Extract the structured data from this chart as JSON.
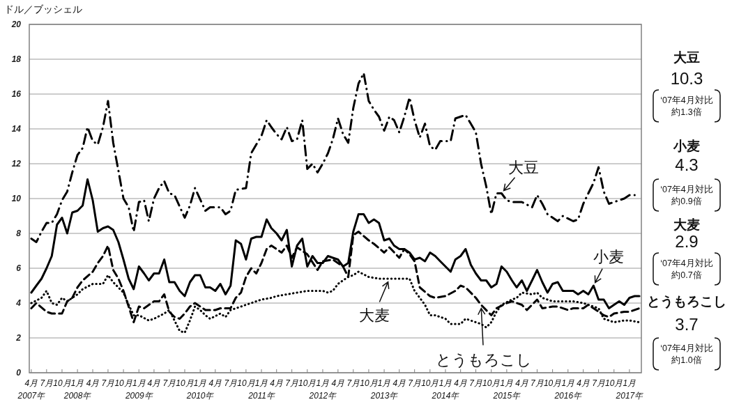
{
  "chart_data": {
    "type": "line",
    "ylabel": "ドル／ブッシェル",
    "grid": "y",
    "xlim": [
      "2007-03-20",
      "2017-03-13"
    ],
    "ylim": [
      0,
      20
    ],
    "yticks": [
      0,
      2,
      4,
      6,
      8,
      10,
      12,
      14,
      16,
      18,
      20
    ],
    "xticks": [
      {
        "value": "2007-04",
        "label": "4月\n2007年"
      },
      {
        "value": "2007-07",
        "label": "7月"
      },
      {
        "value": "2007-10",
        "label": "10月"
      },
      {
        "value": "2008-01",
        "label": "1月\n2008年"
      },
      {
        "value": "2008-04",
        "label": "4月"
      },
      {
        "value": "2008-07",
        "label": "7月"
      },
      {
        "value": "2008-10",
        "label": "10月"
      },
      {
        "value": "2009-01",
        "label": "1月\n2009年"
      },
      {
        "value": "2009-04",
        "label": "4月"
      },
      {
        "value": "2009-07",
        "label": "7月"
      },
      {
        "value": "2009-10",
        "label": "10月"
      },
      {
        "value": "2010-01",
        "label": "1月\n2010年"
      },
      {
        "value": "2010-04",
        "label": "4月"
      },
      {
        "value": "2010-07",
        "label": "7月"
      },
      {
        "value": "2010-10",
        "label": "10月"
      },
      {
        "value": "2011-01",
        "label": "1月\n2011年"
      },
      {
        "value": "2011-04",
        "label": "4月"
      },
      {
        "value": "2011-07",
        "label": "7月"
      },
      {
        "value": "2011-10",
        "label": "10月"
      },
      {
        "value": "2012-01",
        "label": "1月\n2012年"
      },
      {
        "value": "2012-04",
        "label": "4月"
      },
      {
        "value": "2012-07",
        "label": "7月"
      },
      {
        "value": "2012-10",
        "label": "10月"
      },
      {
        "value": "2013-01",
        "label": "1月\n2013年"
      },
      {
        "value": "2013-04",
        "label": "4月"
      },
      {
        "value": "2013-07",
        "label": "7月"
      },
      {
        "value": "2013-10",
        "label": "10月"
      },
      {
        "value": "2014-01",
        "label": "1月\n2014年"
      },
      {
        "value": "2014-04",
        "label": "4月"
      },
      {
        "value": "2014-07",
        "label": "7月"
      },
      {
        "value": "2014-10",
        "label": "10月"
      },
      {
        "value": "2015-01",
        "label": "1月\n2015年"
      },
      {
        "value": "2015-04",
        "label": "4月"
      },
      {
        "value": "2015-07",
        "label": "7月"
      },
      {
        "value": "2015-10",
        "label": "10月"
      },
      {
        "value": "2016-01",
        "label": "1月\n2016年"
      },
      {
        "value": "2016-04",
        "label": "4月"
      },
      {
        "value": "2016-07",
        "label": "7月"
      },
      {
        "value": "2016-10",
        "label": "10月"
      },
      {
        "value": "2017-01",
        "label": "1月\n2017年"
      }
    ],
    "x": [
      "2007-04",
      "2007-05",
      "2007-06",
      "2007-07",
      "2007-08",
      "2007-09",
      "2007-10",
      "2007-11",
      "2007-12",
      "2008-01",
      "2008-02",
      "2008-03",
      "2008-04",
      "2008-05",
      "2008-06",
      "2008-07",
      "2008-08",
      "2008-09",
      "2008-10",
      "2008-11",
      "2008-12",
      "2009-01",
      "2009-02",
      "2009-03",
      "2009-04",
      "2009-05",
      "2009-06",
      "2009-07",
      "2009-08",
      "2009-09",
      "2009-10",
      "2009-11",
      "2009-12",
      "2010-01",
      "2010-02",
      "2010-03",
      "2010-04",
      "2010-05",
      "2010-06",
      "2010-07",
      "2010-08",
      "2010-09",
      "2010-10",
      "2010-11",
      "2010-12",
      "2011-01",
      "2011-02",
      "2011-03",
      "2011-04",
      "2011-05",
      "2011-06",
      "2011-07",
      "2011-08",
      "2011-09",
      "2011-10",
      "2011-11",
      "2011-12",
      "2012-01",
      "2012-02",
      "2012-03",
      "2012-04",
      "2012-05",
      "2012-06",
      "2012-07",
      "2012-08",
      "2012-09",
      "2012-10",
      "2012-11",
      "2012-12",
      "2013-01",
      "2013-02",
      "2013-03",
      "2013-04",
      "2013-05",
      "2013-06",
      "2013-07",
      "2013-08",
      "2013-09",
      "2013-10",
      "2013-11",
      "2013-12",
      "2014-01",
      "2014-02",
      "2014-03",
      "2014-04",
      "2014-05",
      "2014-06",
      "2014-07",
      "2014-08",
      "2014-09",
      "2014-10",
      "2014-11",
      "2014-12",
      "2015-01",
      "2015-02",
      "2015-03",
      "2015-04",
      "2015-05",
      "2015-06",
      "2015-07",
      "2015-08",
      "2015-09",
      "2015-10",
      "2015-11",
      "2015-12",
      "2016-01",
      "2016-02",
      "2016-03",
      "2016-04",
      "2016-05",
      "2016-06",
      "2016-07",
      "2016-08",
      "2016-09",
      "2016-10",
      "2016-11",
      "2016-12",
      "2017-01",
      "2017-02",
      "2017-03"
    ],
    "series": [
      {
        "color": "#000000",
        "line_style": "dashdot",
        "x": [
          "2007-04",
          "2007-05",
          "2007-06",
          "2007-07",
          "2007-08",
          "2007-09",
          "2007-10",
          "2007-11",
          "2007-12",
          "2008-01",
          "2008-02",
          "2008-03",
          "2008-04",
          "2008-05",
          "2008-06",
          "2008-07",
          "2008-08",
          "2008-09",
          "2008-10",
          "2008-11",
          "2008-12",
          "2009-01",
          "2009-02",
          "2009-03",
          "2009-04",
          "2009-05",
          "2009-06",
          "2009-07",
          "2009-08",
          "2009-10",
          "2009-11",
          "2009-12",
          "2010-02",
          "2010-03",
          "2010-05",
          "2010-06",
          "2010-07",
          "2010-08",
          "2010-10",
          "2010-11",
          "2010-12",
          "2011-01",
          "2011-02",
          "2011-03",
          "2011-04",
          "2011-05",
          "2011-06",
          "2011-07",
          "2011-08",
          "2011-09",
          "2011-10",
          "2011-11",
          "2011-12",
          "2012-01",
          "2012-02",
          "2012-03",
          "2012-04",
          "2012-05",
          "2012-06",
          "2012-07",
          "2012-08",
          "2012-09",
          "2012-10",
          "2012-11",
          "2012-12",
          "2013-01",
          "2013-02",
          "2013-03",
          "2013-04",
          "2013-05",
          "2013-06",
          "2013-07",
          "2013-08",
          "2013-09",
          "2013-10",
          "2013-11",
          "2013-12",
          "2014-02",
          "2014-03",
          "2014-05",
          "2014-06",
          "2014-07",
          "2014-08",
          "2014-09",
          "2014-10",
          "2014-11",
          "2014-12",
          "2015-01",
          "2015-02",
          "2015-04",
          "2015-06",
          "2015-07",
          "2015-08",
          "2015-09",
          "2015-11",
          "2015-12",
          "2016-02",
          "2016-03",
          "2016-04",
          "2016-05",
          "2016-06",
          "2016-07",
          "2016-08",
          "2016-09",
          "2016-10",
          "2016-12",
          "2017-01",
          "2017-02"
        ],
        "values": [
          7.7,
          7.5,
          8.1,
          8.6,
          8.6,
          9.1,
          9.9,
          10.4,
          11.5,
          12.5,
          12.9,
          14.1,
          13.3,
          13.1,
          14.1,
          15.6,
          13.2,
          11.6,
          10.0,
          9.5,
          8.1,
          9.8,
          9.9,
          8.7,
          10.0,
          10.6,
          11.0,
          10.3,
          10.2,
          8.9,
          9.6,
          10.6,
          9.3,
          9.5,
          9.5,
          9.1,
          9.3,
          10.5,
          10.6,
          12.6,
          13.1,
          13.6,
          14.5,
          14.1,
          13.7,
          13.4,
          14.1,
          13.3,
          13.4,
          14.5,
          11.7,
          12.0,
          11.5,
          12.0,
          12.6,
          13.4,
          14.6,
          13.7,
          13.2,
          15.2,
          16.6,
          17.2,
          15.6,
          15.1,
          14.7,
          13.9,
          14.7,
          14.5,
          13.8,
          14.7,
          15.8,
          14.5,
          13.5,
          14.3,
          13.0,
          12.8,
          13.3,
          13.3,
          14.6,
          14.8,
          14.3,
          13.8,
          12.0,
          10.7,
          9.1,
          10.3,
          10.3,
          9.9,
          9.8,
          9.8,
          9.5,
          10.2,
          9.7,
          9.1,
          8.7,
          9.0,
          8.7,
          8.8,
          9.7,
          10.3,
          10.9,
          11.8,
          10.4,
          9.7,
          9.8,
          10.0,
          10.2,
          10.2
        ]
      },
      {
        "color": "#000000",
        "line_style": "solid",
        "values": [
          4.6,
          5.0,
          5.4,
          6.0,
          6.7,
          8.5,
          8.9,
          8.0,
          9.2,
          9.3,
          9.6,
          11.1,
          9.9,
          8.1,
          8.3,
          8.4,
          8.2,
          7.5,
          6.5,
          5.4,
          4.8,
          6.1,
          5.7,
          5.3,
          5.7,
          5.7,
          6.5,
          5.2,
          5.2,
          4.7,
          4.4,
          5.2,
          5.6,
          5.6,
          4.9,
          4.9,
          4.7,
          5.1,
          4.5,
          5.0,
          7.6,
          7.4,
          6.5,
          7.7,
          7.8,
          7.8,
          8.8,
          8.3,
          8.0,
          7.6,
          8.2,
          6.1,
          7.3,
          7.7,
          6.1,
          6.7,
          6.3,
          6.3,
          6.7,
          6.6,
          6.5,
          6.1,
          6.3,
          8.1,
          9.1,
          9.1,
          8.6,
          8.8,
          8.6,
          7.6,
          7.7,
          7.3,
          7.1,
          7.1,
          6.9,
          6.5,
          6.6,
          6.4,
          6.9,
          6.7,
          6.4,
          6.1,
          5.8,
          6.5,
          6.7,
          7.1,
          6.2,
          5.7,
          5.3,
          5.3,
          4.9,
          5.1,
          6.1,
          5.8,
          5.3,
          4.9,
          5.3,
          4.7,
          5.3,
          5.9,
          5.2,
          4.6,
          5.1,
          5.2,
          4.7,
          4.7,
          4.7,
          4.5,
          4.7,
          4.5,
          5.0,
          4.2,
          4.2,
          3.7,
          3.9,
          4.1,
          3.9,
          4.3,
          4.4,
          4.4
        ]
      },
      {
        "color": "#000000",
        "line_style": "dotted",
        "x": [
          "2007-04",
          "2007-06",
          "2007-07",
          "2007-08",
          "2007-09",
          "2007-10",
          "2007-11",
          "2008-01",
          "2008-02",
          "2008-04",
          "2008-06",
          "2008-07",
          "2008-08",
          "2008-10",
          "2008-11",
          "2008-12",
          "2009-01",
          "2009-03",
          "2009-04",
          "2009-06",
          "2009-07",
          "2009-08",
          "2009-09",
          "2009-10",
          "2009-11",
          "2009-12",
          "2010-01",
          "2010-02",
          "2010-03",
          "2010-05",
          "2010-06",
          "2010-07",
          "2010-09",
          "2010-10",
          "2010-11",
          "2011-01",
          "2011-03",
          "2011-04",
          "2011-06",
          "2011-08",
          "2011-10",
          "2011-11",
          "2012-01",
          "2012-02",
          "2012-03",
          "2012-04",
          "2012-05",
          "2012-06",
          "2012-07",
          "2012-08",
          "2012-10",
          "2012-12",
          "2013-01",
          "2013-03",
          "2013-05",
          "2013-06",
          "2013-07",
          "2013-08",
          "2013-09",
          "2013-10",
          "2013-11",
          "2014-01",
          "2014-02",
          "2014-04",
          "2014-05",
          "2014-07",
          "2014-08",
          "2014-09",
          "2014-10",
          "2014-11",
          "2014-12",
          "2015-02",
          "2015-03",
          "2015-04",
          "2015-06",
          "2015-07",
          "2015-08",
          "2015-10",
          "2015-12",
          "2016-02",
          "2016-04",
          "2016-05",
          "2016-07",
          "2016-08",
          "2016-09",
          "2016-10",
          "2016-12",
          "2017-01",
          "2017-03"
        ],
        "values": [
          4.0,
          4.3,
          4.7,
          4.0,
          3.9,
          4.3,
          4.1,
          4.5,
          4.8,
          5.1,
          5.1,
          5.6,
          5.2,
          4.6,
          3.9,
          3.3,
          3.3,
          3.0,
          3.1,
          3.4,
          3.6,
          3.0,
          2.4,
          2.3,
          3.0,
          3.8,
          3.6,
          3.3,
          3.1,
          3.4,
          3.2,
          3.6,
          3.8,
          3.9,
          4.0,
          4.2,
          4.3,
          4.4,
          4.5,
          4.6,
          4.7,
          4.7,
          4.7,
          4.6,
          4.7,
          5.1,
          5.3,
          5.5,
          5.6,
          5.8,
          5.5,
          5.4,
          5.4,
          5.4,
          5.4,
          5.4,
          4.7,
          4.3,
          3.9,
          3.3,
          3.3,
          3.1,
          2.8,
          2.8,
          3.1,
          2.9,
          2.8,
          2.6,
          2.9,
          3.5,
          3.9,
          4.2,
          4.3,
          4.6,
          4.5,
          4.6,
          4.3,
          4.1,
          4.1,
          4.1,
          4.0,
          3.9,
          3.7,
          3.1,
          3.0,
          2.9,
          3.0,
          3.0,
          2.9
        ]
      },
      {
        "color": "#000000",
        "line_style": "dashed",
        "x": [
          "2007-04",
          "2007-05",
          "2007-07",
          "2007-08",
          "2007-10",
          "2007-11",
          "2007-12",
          "2008-01",
          "2008-02",
          "2008-04",
          "2008-05",
          "2008-06",
          "2008-07",
          "2008-08",
          "2008-09",
          "2008-10",
          "2008-11",
          "2008-12",
          "2009-01",
          "2009-02",
          "2009-04",
          "2009-05",
          "2009-06",
          "2009-07",
          "2009-08",
          "2009-09",
          "2009-10",
          "2009-11",
          "2009-12",
          "2010-02",
          "2010-04",
          "2010-05",
          "2010-07",
          "2010-08",
          "2010-09",
          "2010-10",
          "2010-11",
          "2010-12",
          "2011-01",
          "2011-02",
          "2011-03",
          "2011-05",
          "2011-06",
          "2011-07",
          "2011-08",
          "2011-10",
          "2011-12",
          "2012-01",
          "2012-03",
          "2012-05",
          "2012-06",
          "2012-07",
          "2012-08",
          "2012-10",
          "2012-11",
          "2013-01",
          "2013-02",
          "2013-04",
          "2013-05",
          "2013-06",
          "2013-07",
          "2013-08",
          "2013-10",
          "2013-11",
          "2014-01",
          "2014-03",
          "2014-04",
          "2014-05",
          "2014-07",
          "2014-08",
          "2014-10",
          "2014-11",
          "2015-01",
          "2015-02",
          "2015-04",
          "2015-05",
          "2015-07",
          "2015-08",
          "2015-10",
          "2015-11",
          "2016-01",
          "2016-02",
          "2016-04",
          "2016-05",
          "2016-06",
          "2016-08",
          "2016-09",
          "2016-10",
          "2016-12",
          "2017-01",
          "2017-03"
        ],
        "values": [
          3.7,
          4.0,
          3.5,
          3.4,
          3.4,
          4.1,
          4.3,
          4.9,
          5.3,
          5.8,
          6.3,
          6.7,
          7.3,
          5.9,
          5.4,
          4.7,
          3.8,
          2.9,
          3.8,
          3.7,
          4.1,
          4.1,
          4.5,
          3.5,
          3.2,
          3.1,
          3.4,
          3.8,
          4.0,
          3.6,
          3.6,
          3.7,
          3.7,
          4.3,
          4.6,
          5.5,
          6.0,
          5.7,
          6.3,
          7.1,
          7.3,
          6.9,
          7.3,
          6.6,
          7.2,
          6.8,
          5.9,
          6.4,
          6.5,
          6.1,
          5.5,
          7.9,
          8.1,
          7.6,
          7.4,
          6.9,
          7.2,
          6.6,
          7.1,
          6.8,
          6.4,
          4.9,
          4.4,
          4.3,
          4.4,
          4.7,
          5.0,
          4.9,
          4.3,
          3.9,
          3.3,
          3.7,
          4.0,
          4.1,
          3.9,
          3.6,
          4.2,
          3.7,
          3.8,
          3.8,
          3.6,
          3.7,
          3.7,
          3.9,
          3.7,
          3.3,
          3.2,
          3.4,
          3.5,
          3.5,
          3.7
        ]
      }
    ],
    "annotations": [
      {
        "text": "大豆",
        "x": "2014-12",
        "y": 10.3
      },
      {
        "text": "小麦",
        "x": "2016-06",
        "y": 5.0
      },
      {
        "text": "大麦",
        "x": "2013-02",
        "y": 5.4
      },
      {
        "text": "とうもろこし",
        "x": "2014-08",
        "y": 3.9
      },
      "大豆",
      "10.3",
      "‘07年4月対比",
      "約1.3倍",
      "小麦",
      "4.3",
      "‘07年4月対比",
      "約0.9倍",
      "大麦",
      "2.9",
      "‘07年4月対比",
      "約0.7倍",
      "とうもろこし",
      "3.7",
      "‘07年4月対比",
      "約1.0倍"
    ]
  }
}
